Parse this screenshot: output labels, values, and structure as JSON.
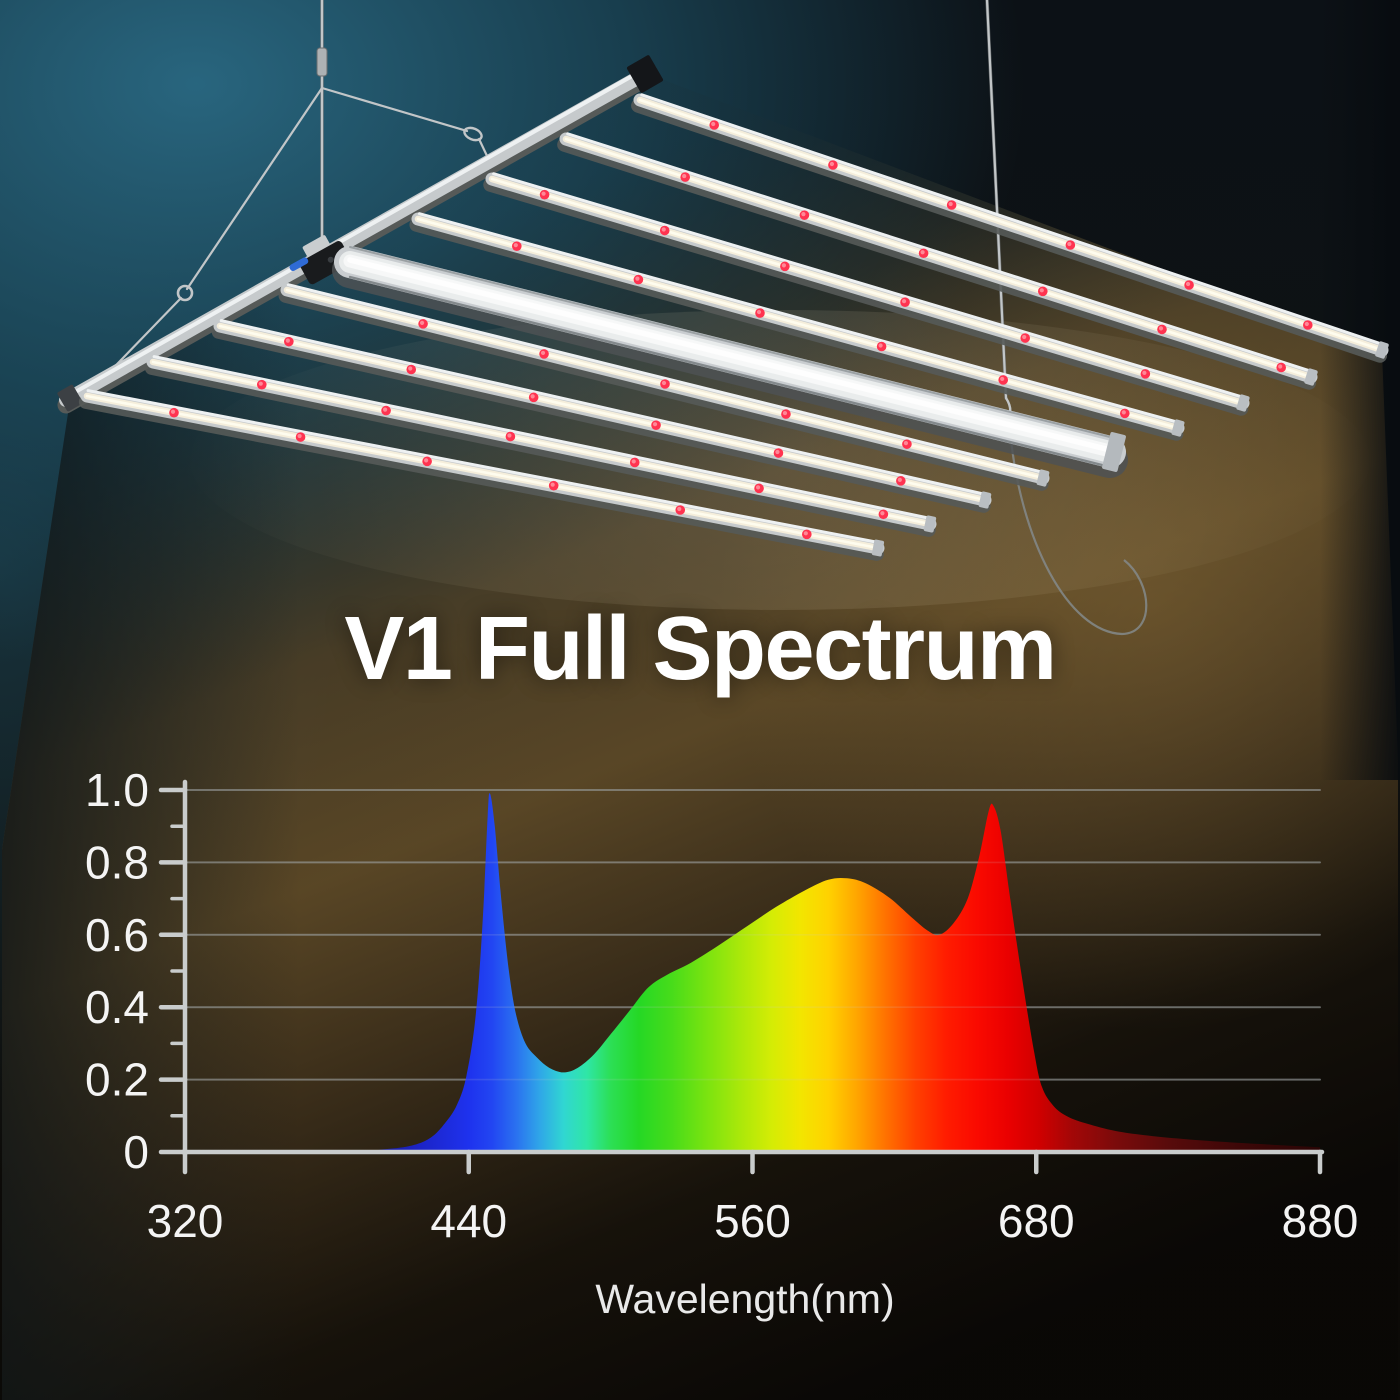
{
  "page": {
    "title_text": "V1 Full Spectrum"
  },
  "fixture": {
    "description": "LED grow light panel viewed from below at an angle, hanging from two steel cables, casting a warm light beam downward",
    "bar_count": 8,
    "wide_center_spine_count": 1,
    "hang_wire_count": 2,
    "red_leds_per_bar": 6,
    "frame_color": "#c6cacc",
    "frame_highlight_color": "#eef1f2",
    "frame_shadow_color": "#565a58",
    "led_strip_color": "#f5eedb",
    "led_core_color": "#fffdf0",
    "red_led_color": "#ff3350",
    "red_led_core_color": "#ff8896",
    "end_cap_color": "#141619",
    "clamp_color": "#191b1d",
    "clamp_tie_color": "#2f6bd6",
    "wire_color": "#c2c6c8"
  },
  "background": {
    "teal_glow": "#2a6a84",
    "beam_brown_bright": "#614c28",
    "base_dark": "#0b0e11"
  },
  "chart_data": {
    "type": "area",
    "title": "V1 Full Spectrum",
    "xlabel": "Wavelength(nm)",
    "ylabel": "",
    "x_ticks": [
      320,
      440,
      560,
      680,
      880
    ],
    "x_axis_note": "non-linear axis: equal pixel spacing between consecutive labeled ticks",
    "y_ticks": [
      0,
      0.2,
      0.4,
      0.6,
      0.8,
      1.0
    ],
    "y_minor_ticks": [
      0.1,
      0.3,
      0.5,
      0.7,
      0.9
    ],
    "ylim": [
      0,
      1.0
    ],
    "grid": "horizontal gridlines at major y ticks",
    "legend": "none",
    "fill": "spectral rainbow gradient along wavelength",
    "points": [
      [
        320,
        0
      ],
      [
        390,
        0.003
      ],
      [
        405,
        0.008
      ],
      [
        416,
        0.018
      ],
      [
        424,
        0.04
      ],
      [
        430,
        0.08
      ],
      [
        435,
        0.13
      ],
      [
        439,
        0.21
      ],
      [
        443,
        0.38
      ],
      [
        446,
        0.65
      ],
      [
        448,
        0.93
      ],
      [
        449,
        0.99
      ],
      [
        451,
        0.9
      ],
      [
        454,
        0.68
      ],
      [
        457,
        0.5
      ],
      [
        460,
        0.38
      ],
      [
        464,
        0.3
      ],
      [
        469,
        0.26
      ],
      [
        474,
        0.233
      ],
      [
        480,
        0.22
      ],
      [
        486,
        0.232
      ],
      [
        493,
        0.27
      ],
      [
        500,
        0.325
      ],
      [
        508,
        0.39
      ],
      [
        516,
        0.455
      ],
      [
        524,
        0.49
      ],
      [
        534,
        0.523
      ],
      [
        546,
        0.572
      ],
      [
        558,
        0.625
      ],
      [
        570,
        0.677
      ],
      [
        582,
        0.722
      ],
      [
        592,
        0.752
      ],
      [
        600,
        0.756
      ],
      [
        608,
        0.742
      ],
      [
        618,
        0.702
      ],
      [
        627,
        0.65
      ],
      [
        634,
        0.612
      ],
      [
        639,
        0.6
      ],
      [
        645,
        0.632
      ],
      [
        651,
        0.7
      ],
      [
        656,
        0.82
      ],
      [
        660,
        0.945
      ],
      [
        662,
        0.955
      ],
      [
        665,
        0.885
      ],
      [
        669,
        0.7
      ],
      [
        674,
        0.48
      ],
      [
        679,
        0.28
      ],
      [
        684,
        0.18
      ],
      [
        692,
        0.128
      ],
      [
        702,
        0.098
      ],
      [
        716,
        0.078
      ],
      [
        736,
        0.058
      ],
      [
        762,
        0.044
      ],
      [
        800,
        0.031
      ],
      [
        842,
        0.021
      ],
      [
        880,
        0.013
      ]
    ],
    "peaks": [
      {
        "nm": 449,
        "value": 0.99,
        "label": "blue peak"
      },
      {
        "nm": 596,
        "value": 0.755,
        "label": "broad yellow-orange hump"
      },
      {
        "nm": 661,
        "value": 0.955,
        "label": "red peak"
      }
    ],
    "valleys": [
      {
        "nm": 480,
        "value": 0.22,
        "label": "blue-cyan valley"
      },
      {
        "nm": 639,
        "value": 0.6,
        "label": "dip before red peak"
      }
    ],
    "gradient_stops": [
      [
        390,
        "#17177e"
      ],
      [
        420,
        "#1c24c8"
      ],
      [
        440,
        "#1e32ee"
      ],
      [
        450,
        "#2246f2"
      ],
      [
        460,
        "#2a71f0"
      ],
      [
        470,
        "#2fa6e8"
      ],
      [
        480,
        "#30d6d2"
      ],
      [
        490,
        "#2fe6a6"
      ],
      [
        500,
        "#2cdf55"
      ],
      [
        512,
        "#25d825"
      ],
      [
        526,
        "#48dc1a"
      ],
      [
        540,
        "#78e310"
      ],
      [
        555,
        "#abe80a"
      ],
      [
        568,
        "#d4ec05"
      ],
      [
        580,
        "#f2e600"
      ],
      [
        592,
        "#ffd200"
      ],
      [
        604,
        "#ffa600"
      ],
      [
        616,
        "#ff7300"
      ],
      [
        629,
        "#ff4000"
      ],
      [
        642,
        "#ff1c00"
      ],
      [
        655,
        "#fa0a00"
      ],
      [
        668,
        "#ea0000"
      ],
      [
        682,
        "#d00000"
      ],
      [
        705,
        "#a30707"
      ],
      [
        735,
        "#7c0b0b"
      ],
      [
        775,
        "#570b0b"
      ],
      [
        825,
        "#3c0707"
      ],
      [
        880,
        "#2a0505"
      ]
    ]
  },
  "axis_style": {
    "tick_label_color": "#f4f4f4",
    "axis_color": "#c9cccc",
    "grid_color": "#8f9595"
  }
}
